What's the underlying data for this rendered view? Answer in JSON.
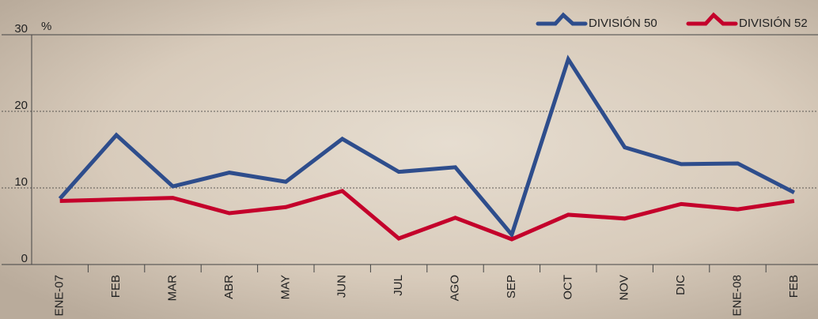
{
  "chart_data": {
    "type": "line",
    "y_unit": "%",
    "categories": [
      "ENE-07",
      "FEB",
      "MAR",
      "ABR",
      "MAY",
      "JUN",
      "JUL",
      "AGO",
      "SEP",
      "OCT",
      "NOV",
      "DIC",
      "ENE-08",
      "FEB"
    ],
    "series": [
      {
        "name": "DIVISIÓN 50",
        "color": "#2e4d8c",
        "values": [
          8.6,
          16.9,
          10.2,
          12.0,
          10.8,
          16.4,
          12.1,
          12.7,
          3.9,
          26.8,
          15.3,
          13.1,
          13.2,
          9.4
        ]
      },
      {
        "name": "DIVISIÓN 52",
        "color": "#c4002b",
        "values": [
          8.3,
          8.5,
          8.7,
          6.7,
          7.5,
          9.6,
          3.4,
          6.1,
          3.3,
          6.5,
          6.0,
          7.9,
          7.2,
          8.3
        ]
      }
    ],
    "ylim": [
      0,
      30
    ],
    "yticks": [
      0,
      10,
      20,
      30
    ],
    "grid": true,
    "legend": "top-right"
  }
}
